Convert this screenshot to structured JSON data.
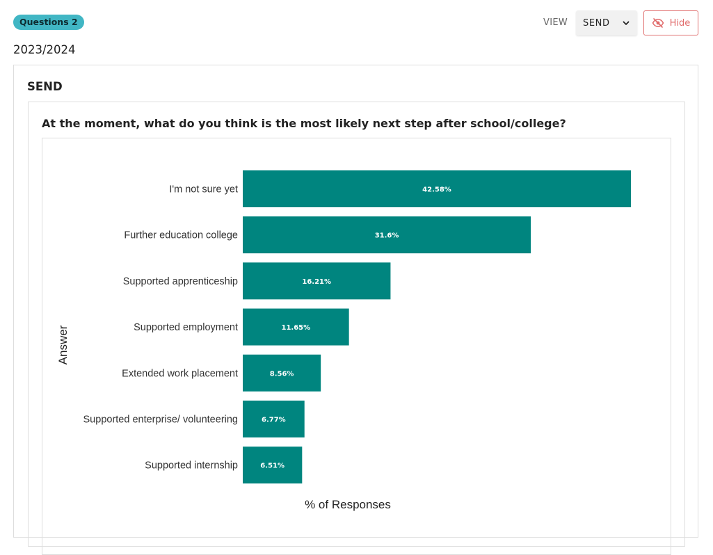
{
  "header": {
    "badge": "Questions 2",
    "year": "2023/2024",
    "view_label": "VIEW",
    "view_value": "SEND",
    "hide_label": "Hide"
  },
  "section": {
    "title": "SEND",
    "question": "At the moment, what do you think is the most likely next step after school/college?"
  },
  "colors": {
    "badge": "#41b6c4",
    "bar": "#00857f",
    "hide_accent": "#e06a6a"
  },
  "icons": {
    "view_dropdown": "chevron-down-icon",
    "hide": "eye-off-icon"
  },
  "chart_data": {
    "type": "bar",
    "orientation": "horizontal",
    "categories": [
      "I'm not sure yet",
      "Further education college",
      "Supported apprenticeship",
      "Supported employment",
      "Extended work placement",
      "Supported enterprise/ volunteering",
      "Supported internship"
    ],
    "values": [
      42.58,
      31.6,
      16.21,
      11.65,
      8.56,
      6.77,
      6.51
    ],
    "value_labels": [
      "42.58%",
      "31.6%",
      "16.21%",
      "11.65%",
      "8.56%",
      "6.77%",
      "6.51%"
    ],
    "xlabel": "% of Responses",
    "ylabel": "Answer",
    "xlim": [
      0,
      42.58
    ],
    "grid": false,
    "legend": "none"
  }
}
